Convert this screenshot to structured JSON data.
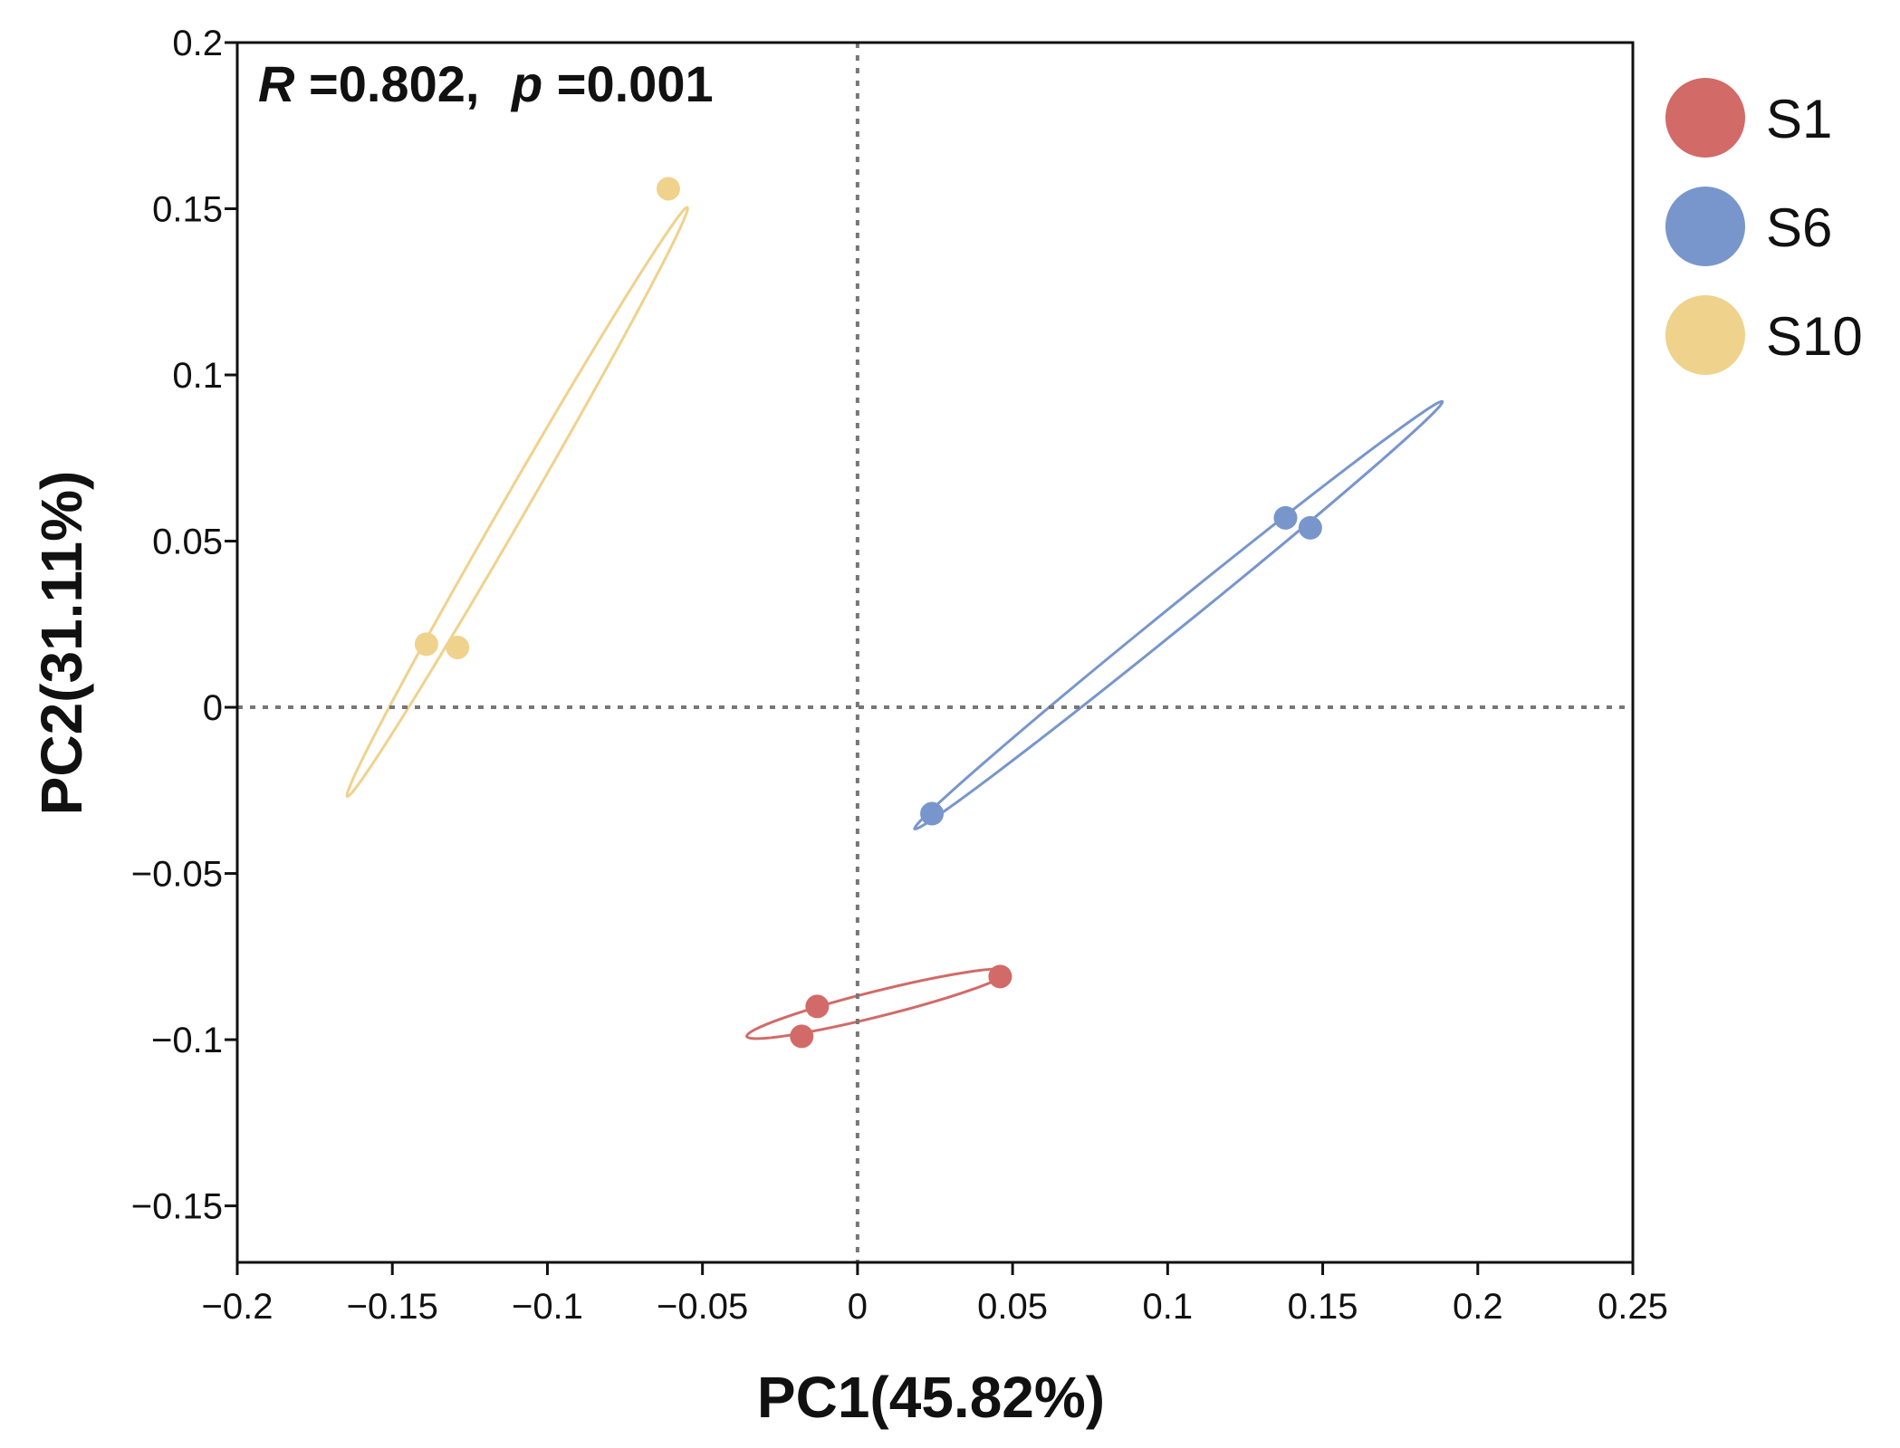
{
  "chart_data": {
    "type": "scatter",
    "title": "",
    "xlabel": "PC1(45.82%)",
    "ylabel": "PC2(31.11%)",
    "xlim": [
      -0.2,
      0.25
    ],
    "ylim": [
      -0.167,
      0.2
    ],
    "x_ticks": [
      -0.2,
      -0.15,
      -0.1,
      -0.05,
      0,
      0.05,
      0.1,
      0.15,
      0.2,
      0.25
    ],
    "x_tick_labels": [
      "−0.2",
      "−0.15",
      "−0.1",
      "−0.05",
      "0",
      "0.05",
      "0.1",
      "0.15",
      "0.2",
      "0.25"
    ],
    "y_ticks": [
      0.2,
      0.15,
      0.1,
      0.05,
      0,
      -0.05,
      -0.1,
      -0.15
    ],
    "y_tick_labels": [
      "0.2",
      "0.15",
      "0.1",
      "0.05",
      "0",
      "−0.05",
      "−0.1",
      "−0.15"
    ],
    "grid": false,
    "reference_lines": {
      "x": 0,
      "y": 0,
      "style": "dotted"
    },
    "statistic": {
      "r_label": "R",
      "r_value": "=0.802,",
      "p_label": "p",
      "p_value": "=0.001"
    },
    "legend_position": "right",
    "series": [
      {
        "name": "S1",
        "color": "#d26a68",
        "points": [
          {
            "x": -0.013,
            "y": -0.09
          },
          {
            "x": -0.018,
            "y": -0.099
          },
          {
            "x": 0.046,
            "y": -0.081
          }
        ],
        "ellipse": {
          "cx": 0.0065,
          "cy": -0.0892,
          "semi_major": 0.0435,
          "semi_minor": 0.0041,
          "angle_deg": 14
        }
      },
      {
        "name": "S6",
        "color": "#7896cc",
        "points": [
          {
            "x": 0.138,
            "y": 0.057
          },
          {
            "x": 0.146,
            "y": 0.054
          },
          {
            "x": 0.024,
            "y": -0.032
          }
        ],
        "ellipse": {
          "cx": 0.1035,
          "cy": 0.0277,
          "semi_major": 0.1095,
          "semi_minor": 0.0036,
          "angle_deg": 39
        }
      },
      {
        "name": "S10",
        "color": "#efd28c",
        "points": [
          {
            "x": -0.061,
            "y": 0.156
          },
          {
            "x": -0.139,
            "y": 0.019
          },
          {
            "x": -0.129,
            "y": 0.018
          }
        ],
        "ellipse": {
          "cx": -0.1097,
          "cy": 0.0618,
          "semi_major": 0.1097,
          "semi_minor": 0.0038,
          "angle_deg": 60
        }
      }
    ]
  }
}
